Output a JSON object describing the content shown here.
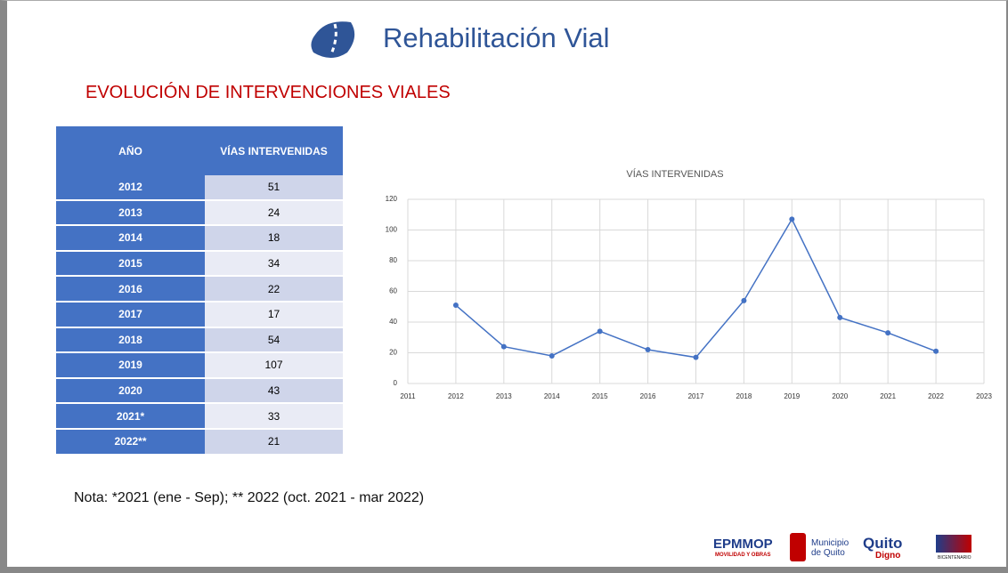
{
  "header": {
    "title": "Rehabilitación Vial",
    "subtitle": "EVOLUCIÓN DE INTERVENCIONES VIALES"
  },
  "table": {
    "columns": [
      "AÑO",
      "VÍAS INTERVENIDAS"
    ],
    "rows": [
      [
        "2012",
        51
      ],
      [
        "2013",
        24
      ],
      [
        "2014",
        18
      ],
      [
        "2015",
        34
      ],
      [
        "2016",
        22
      ],
      [
        "2017",
        17
      ],
      [
        "2018",
        54
      ],
      [
        "2019",
        107
      ],
      [
        "2020",
        43
      ],
      [
        "2021*",
        33
      ],
      [
        "2022**",
        21
      ]
    ]
  },
  "chart_data": {
    "type": "line",
    "title": "VÍAS INTERVENIDAS",
    "x": [
      2012,
      2013,
      2014,
      2015,
      2016,
      2017,
      2018,
      2019,
      2020,
      2021,
      2022
    ],
    "values": [
      51,
      24,
      18,
      34,
      22,
      17,
      54,
      107,
      43,
      33,
      21
    ],
    "color": "#4472c4",
    "xlim": [
      2011,
      2023
    ],
    "xticks": [
      2011,
      2012,
      2013,
      2014,
      2015,
      2016,
      2017,
      2018,
      2019,
      2020,
      2021,
      2022,
      2023
    ],
    "ylim": [
      0,
      120
    ],
    "yticks": [
      0,
      20,
      40,
      60,
      80,
      100,
      120
    ],
    "grid": true
  },
  "note": "Nota: *2021 (ene - Sep); ** 2022 (oct. 2021 - mar 2022)",
  "logos": {
    "epmmop": "EPMMOP",
    "epmmop_sub": "MOVILIDAD Y OBRAS",
    "municipio": "Municipio de Quito",
    "quito": "Quito",
    "digno": "Digno",
    "bicentenario": "BICENTENARIO"
  }
}
